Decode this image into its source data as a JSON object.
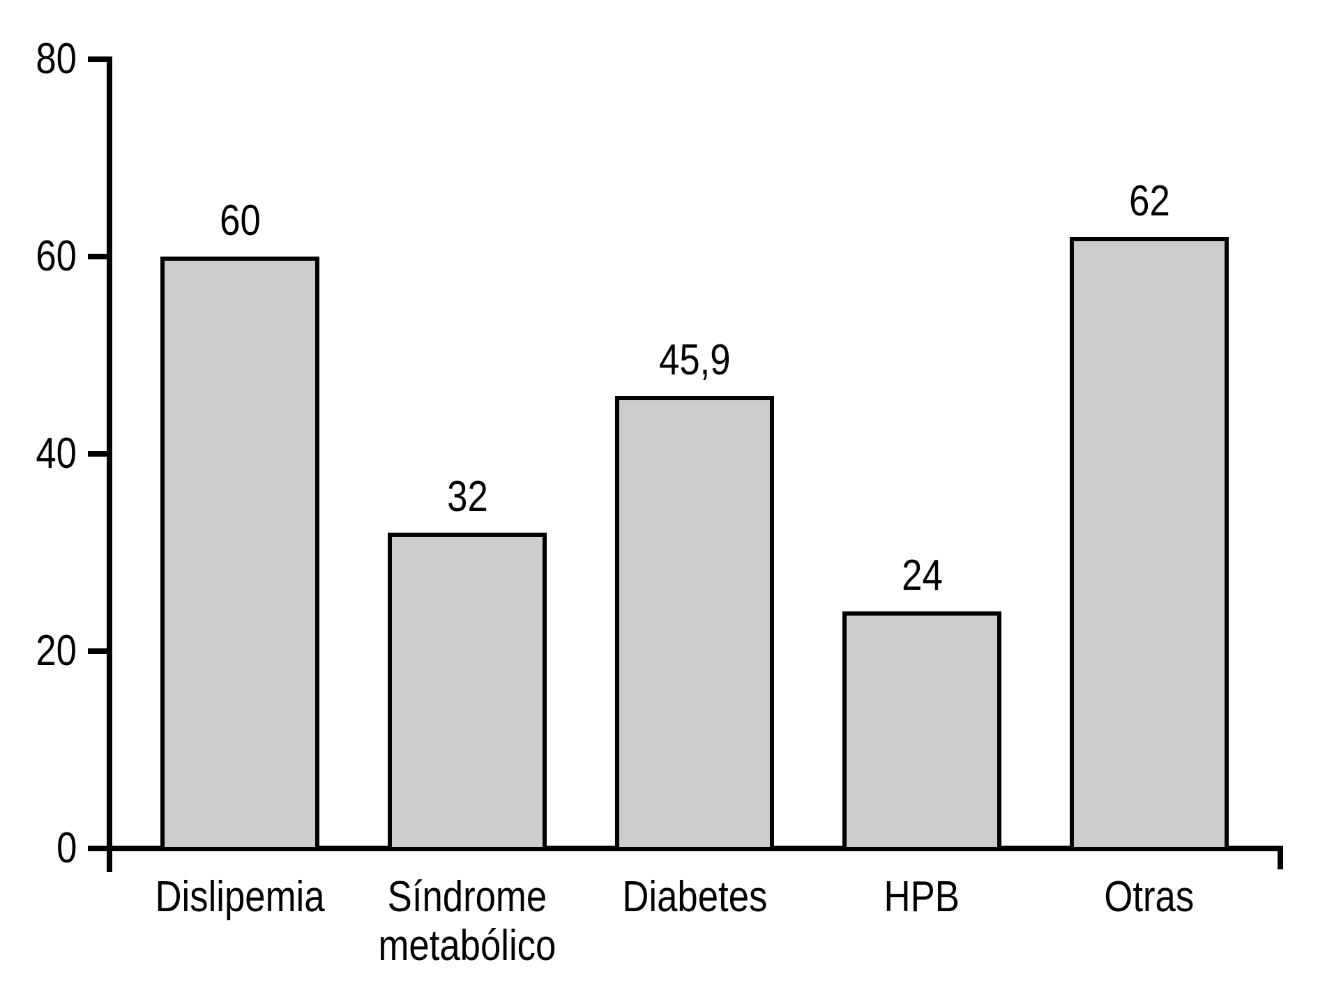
{
  "chart_data": {
    "type": "bar",
    "categories": [
      "Dislipemia",
      "Síndrome\nmetabólico",
      "Diabetes",
      "HPB",
      "Otras"
    ],
    "values": [
      60,
      32,
      45.9,
      24,
      62
    ],
    "value_labels": [
      "60",
      "32",
      "45,9",
      "24",
      "62"
    ],
    "ylim": [
      0,
      80
    ],
    "yticks": [
      0,
      20,
      40,
      60,
      80
    ],
    "ytick_labels": [
      "0",
      "20",
      "40",
      "60",
      "80"
    ],
    "xlabel": "",
    "ylabel": "",
    "title": "",
    "grid": false,
    "legend_position": "none",
    "bar_fill_color": "#cccccc",
    "bar_border_color": "#000000",
    "axis_color": "#000000",
    "text_color": "#000000",
    "background_color": "#ffffff"
  }
}
